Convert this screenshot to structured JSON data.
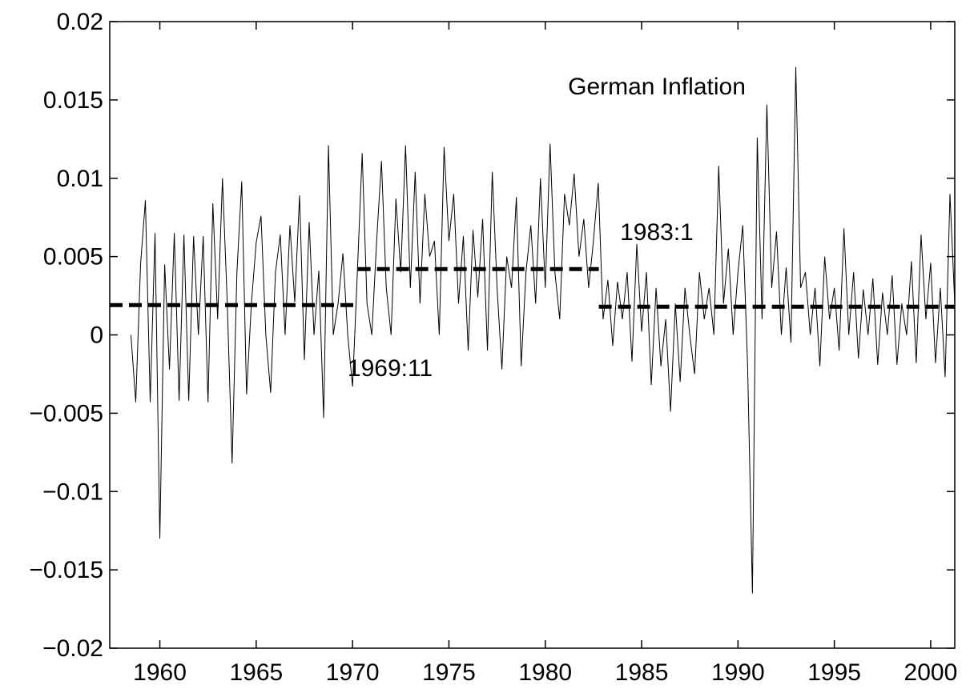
{
  "chart_data": {
    "type": "line",
    "annotations": [
      "German Inflation",
      "1983:1",
      "1969:11"
    ],
    "xlim": [
      1957.4,
      2001.25
    ],
    "xticks": [
      1960,
      1965,
      1970,
      1975,
      1980,
      1985,
      1990,
      1995,
      2000
    ],
    "ylim": [
      -0.02,
      0.02
    ],
    "yticks": [
      {
        "value": -0.02,
        "label": "−0.02"
      },
      {
        "value": -0.015,
        "label": "−0.015"
      },
      {
        "value": -0.01,
        "label": "−0.01"
      },
      {
        "value": -0.005,
        "label": "−0.005"
      },
      0,
      0.005,
      0.01,
      0.015,
      0.02
    ],
    "series": [
      {
        "color": "#000000",
        "style": "solid",
        "x": [
          1958.5,
          1958.75,
          1959,
          1959.25,
          1959.5,
          1959.75,
          1960,
          1960.25,
          1960.5,
          1960.75,
          1961,
          1961.25,
          1961.5,
          1961.75,
          1962,
          1962.25,
          1962.5,
          1962.75,
          1963,
          1963.25,
          1963.5,
          1963.75,
          1964,
          1964.25,
          1964.5,
          1964.75,
          1965,
          1965.25,
          1965.5,
          1965.75,
          1966,
          1966.25,
          1966.5,
          1966.75,
          1967,
          1967.25,
          1967.5,
          1967.75,
          1968,
          1968.25,
          1968.5,
          1968.75,
          1969,
          1969.25,
          1969.5,
          1969.75,
          1970,
          1970.25,
          1970.5,
          1970.75,
          1971,
          1971.25,
          1971.5,
          1971.75,
          1972,
          1972.25,
          1972.5,
          1972.75,
          1973,
          1973.25,
          1973.5,
          1973.75,
          1974,
          1974.25,
          1974.5,
          1974.75,
          1975,
          1975.25,
          1975.5,
          1975.75,
          1976,
          1976.25,
          1976.5,
          1976.75,
          1977,
          1977.25,
          1977.5,
          1977.75,
          1978,
          1978.25,
          1978.5,
          1978.75,
          1979,
          1979.25,
          1979.5,
          1979.75,
          1980,
          1980.25,
          1980.5,
          1980.75,
          1981,
          1981.25,
          1981.5,
          1981.75,
          1982,
          1982.25,
          1982.5,
          1982.75,
          1983,
          1983.25,
          1983.5,
          1983.75,
          1984,
          1984.25,
          1984.5,
          1984.75,
          1985,
          1985.25,
          1985.5,
          1985.75,
          1986,
          1986.25,
          1986.5,
          1986.75,
          1987,
          1987.25,
          1987.5,
          1987.75,
          1988,
          1988.25,
          1988.5,
          1988.75,
          1989,
          1989.25,
          1989.5,
          1989.75,
          1990,
          1990.25,
          1990.5,
          1990.75,
          1991,
          1991.25,
          1991.5,
          1991.75,
          1992,
          1992.25,
          1992.5,
          1992.75,
          1993,
          1993.25,
          1993.5,
          1993.75,
          1994,
          1994.25,
          1994.5,
          1994.75,
          1995,
          1995.25,
          1995.5,
          1995.75,
          1996,
          1996.25,
          1996.5,
          1996.75,
          1997,
          1997.25,
          1997.5,
          1997.75,
          1998,
          1998.25,
          1998.5,
          1998.75,
          1999,
          1999.25,
          1999.5,
          1999.75,
          2000,
          2000.25,
          2000.5,
          2000.75,
          2001,
          2001.25
        ],
        "values": [
          0,
          -0.0043,
          0.0045,
          0.0086,
          -0.0043,
          0.0065,
          -0.013,
          0.0045,
          -0.0022,
          0.0065,
          -0.0042,
          0.0064,
          -0.0042,
          0.0063,
          0,
          0.0063,
          -0.0043,
          0.0084,
          0.001,
          0.01,
          0.002,
          -0.0082,
          0.004,
          0.0098,
          -0.0038,
          0.002,
          0.0059,
          0.0076,
          0,
          -0.0037,
          0.004,
          0.0064,
          0,
          0.007,
          0.0021,
          0.0089,
          -0.0016,
          0.0072,
          0,
          0.0041,
          -0.0053,
          0.0121,
          0,
          0.002,
          0.0052,
          0,
          -0.0033,
          0.004,
          0.0116,
          0.002,
          0,
          0.006,
          0.0111,
          0.003,
          0,
          0.0087,
          0.004,
          0.0121,
          0.003,
          0.0104,
          0.002,
          0.009,
          0.005,
          0.006,
          0,
          0.012,
          0.006,
          0.009,
          0.002,
          0.0063,
          -0.001,
          0.0067,
          0.0024,
          0.0074,
          -0.001,
          0.0104,
          0.003,
          -0.0022,
          0.005,
          0.003,
          0.0088,
          -0.002,
          0.004,
          0.007,
          0.002,
          0.01,
          0.003,
          0.0122,
          0.004,
          0.001,
          0.009,
          0.007,
          0.0103,
          0.005,
          0.0074,
          0.003,
          0.006,
          0.0097,
          0.001,
          0.0035,
          -0.0007,
          0.0034,
          0.001,
          0.004,
          -0.0017,
          0.0058,
          0.0002,
          0.004,
          -0.0032,
          0.003,
          -0.002,
          0.001,
          -0.0049,
          0.002,
          -0.003,
          0.003,
          0,
          -0.0025,
          0.004,
          0.001,
          0.003,
          0,
          0.0108,
          0.002,
          0.0055,
          0,
          0.004,
          0.007,
          -0.002,
          -0.0165,
          0.0126,
          0.001,
          0.0147,
          0.003,
          0.0066,
          0,
          0.0043,
          -0.0005,
          0.0171,
          0.003,
          0.004,
          0,
          0.003,
          -0.002,
          0.005,
          0.001,
          0.003,
          -0.001,
          0.0068,
          0,
          0.004,
          -0.0015,
          0.0029,
          0,
          0.0036,
          -0.0019,
          0.0027,
          0,
          0.0038,
          -0.0019,
          0.002,
          0,
          0.0047,
          -0.0018,
          0.0064,
          0.001,
          0.0046,
          -0.0018,
          0.003,
          -0.0027,
          0.009,
          0.002
        ]
      },
      {
        "color": "#000000",
        "style": "dashed",
        "x": [
          1957.4,
          1970.27
        ],
        "values": [
          0.0019,
          0.0019
        ]
      },
      {
        "color": "#000000",
        "style": "dashed",
        "x": [
          1970.27,
          1982.78
        ],
        "values": [
          0.0042,
          0.0042
        ]
      },
      {
        "color": "#000000",
        "style": "dashed",
        "x": [
          1982.78,
          2001.25
        ],
        "values": [
          0.0018,
          0.0018
        ]
      }
    ]
  }
}
